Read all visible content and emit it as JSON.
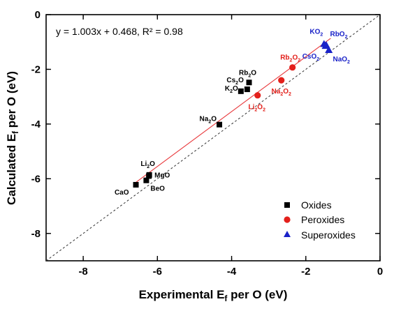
{
  "chart_data": {
    "type": "scatter",
    "xlabel": "Experimental E_f per O (eV)",
    "ylabel": "Calculated E_f per O (eV)",
    "xlim": [
      -9,
      0
    ],
    "ylim": [
      -9,
      0
    ],
    "xticks": [
      -8,
      -6,
      -4,
      -2,
      0
    ],
    "yticks": [
      0,
      -2,
      -4,
      -6,
      -8
    ],
    "xtick_labels": [
      "-8",
      "-6",
      "-4",
      "-2",
      "0"
    ],
    "ytick_labels": [
      "0",
      "-2",
      "-4",
      "-6",
      "-8"
    ],
    "annotation": "y = 1.003x + 0.468, R² = 0.98",
    "fit": {
      "slope": 1.003,
      "intercept": 0.468,
      "r2": 0.98,
      "color": "#e8383b"
    },
    "reference_line": "y = x (dashed)",
    "legend_position": "bottom-right",
    "grid": false,
    "series": [
      {
        "name": "Oxides",
        "marker": "square",
        "color": "#000000",
        "points": [
          {
            "label": "CaO",
            "x": -6.58,
            "y": -6.22
          },
          {
            "label": "BeO",
            "x": -6.3,
            "y": -6.06
          },
          {
            "label": "MgO",
            "x": -6.23,
            "y": -5.9
          },
          {
            "label": "Li2O",
            "x": -6.22,
            "y": -5.86
          },
          {
            "label": "Na2O",
            "x": -4.33,
            "y": -4.02
          },
          {
            "label": "K2O",
            "x": -3.75,
            "y": -2.8
          },
          {
            "label": "Cs2O",
            "x": -3.58,
            "y": -2.73
          },
          {
            "label": "Rb2O",
            "x": -3.53,
            "y": -2.48
          }
        ]
      },
      {
        "name": "Peroxides",
        "marker": "circle",
        "color": "#e3201b",
        "points": [
          {
            "label": "Li2O2",
            "x": -3.3,
            "y": -2.95
          },
          {
            "label": "Na2O2",
            "x": -2.66,
            "y": -2.4
          },
          {
            "label": "Rb2O2",
            "x": -2.36,
            "y": -1.93
          }
        ]
      },
      {
        "name": "Superoxides",
        "marker": "triangle",
        "color": "#1a22c8",
        "points": [
          {
            "label": "KO2",
            "x": -1.51,
            "y": -1.08
          },
          {
            "label": "RbO2",
            "x": -1.45,
            "y": -1.12
          },
          {
            "label": "CsO2",
            "x": -1.47,
            "y": -1.15
          },
          {
            "label": "NaO2",
            "x": -1.38,
            "y": -1.3
          }
        ]
      }
    ]
  }
}
